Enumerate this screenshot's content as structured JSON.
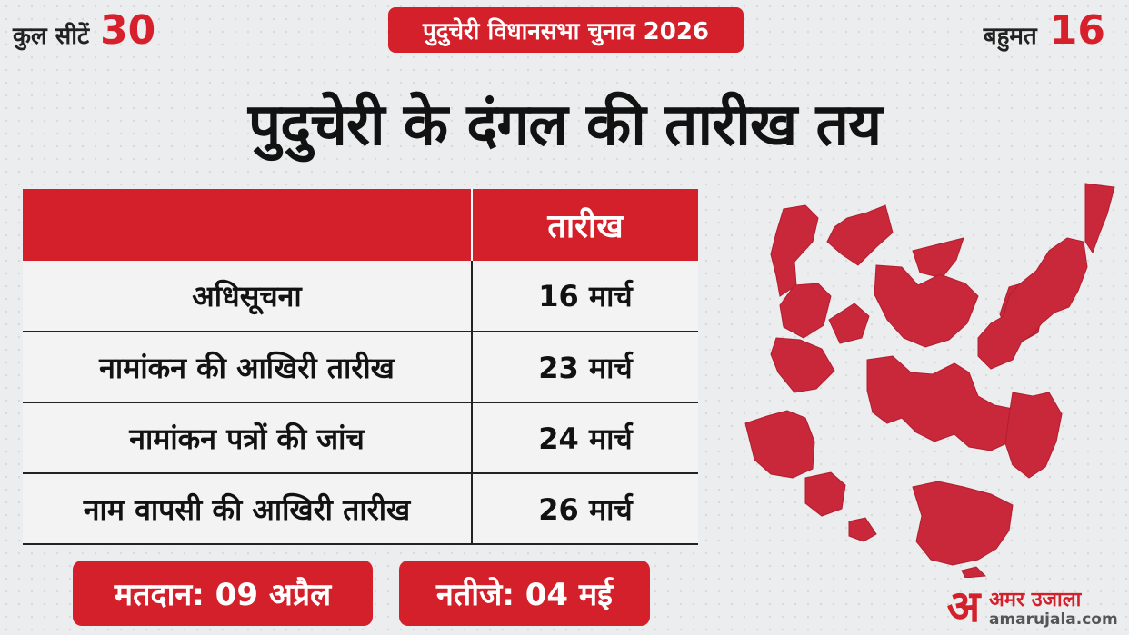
{
  "header": {
    "total_seats_label": "कुल सीटें",
    "total_seats_value": "30",
    "badge": "पुदुचेरी विधानसभा चुनाव 2026",
    "majority_label": "बहुमत",
    "majority_value": "16"
  },
  "headline": "पुदुचेरी के दंगल की तारीख तय",
  "schedule": {
    "date_column_header": "तारीख",
    "rows": [
      {
        "event": "अधिसूचना",
        "date": "16 मार्च"
      },
      {
        "event": "नामांकन की आखिरी तारीख",
        "date": "23 मार्च"
      },
      {
        "event": "नामांकन पत्रों की जांच",
        "date": "24 मार्च"
      },
      {
        "event": "नाम वापसी की आखिरी तारीख",
        "date": "26 मार्च"
      }
    ]
  },
  "footer": {
    "polling": "मतदान: 09 अप्रैल",
    "results": "नतीजे: 04 मई"
  },
  "logo": {
    "mark": "अ",
    "name": "अमर उजाला",
    "url": "amarujala.com"
  },
  "colors": {
    "accent": "#d4202a",
    "map_fill": "#c8283a",
    "background": "#ecedee"
  }
}
